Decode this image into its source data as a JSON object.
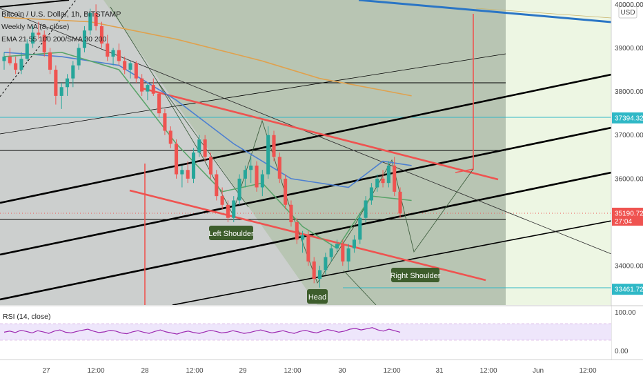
{
  "header": {
    "title": "Bitcoin / U.S. Dollar, 1h, BITSTAMP",
    "ma_label": "Weekly MA (8, close)",
    "ema_label": "EMA 21 55 100 200/SMA 30 200",
    "currency": "USD"
  },
  "colors": {
    "background": "#ffffff",
    "zone_gray": "#b9bcbb",
    "zone_green": "#8fb07a",
    "future_zone": "#edf6e3",
    "rsi_band": "#eee6fb",
    "rsi_line": "#9c27b0",
    "up_candle": "#26a69a",
    "down_candle": "#ef5350",
    "pattern_line": "#ef5350",
    "channel_line": "#000000",
    "blue_trend": "#2a75c5",
    "cyan_level": "#2fb8c6",
    "ma_orange": "#e0a14d",
    "ma_blue": "#4c7fd1",
    "ma_green": "#5aa46a",
    "label_bg": "#3d5d2c"
  },
  "annotations": {
    "left_shoulder": "Left Shoulder",
    "head": "Head",
    "right_shoulder": "Right Shoulder"
  },
  "rsi": {
    "label": "RSI (14, close)",
    "ticks": [
      "100.00",
      "0.00"
    ],
    "values": [
      52,
      55,
      51,
      57,
      54,
      50,
      56,
      53,
      49,
      55,
      58,
      52,
      50,
      54,
      57,
      60,
      55,
      51,
      53,
      57,
      55,
      50,
      48,
      53,
      56,
      52,
      49,
      54,
      58,
      53,
      50,
      47,
      52,
      55,
      51,
      49,
      53,
      57,
      54,
      50,
      52,
      56,
      53,
      49,
      51,
      55,
      58,
      54,
      50,
      53,
      56,
      52,
      49,
      54,
      57,
      53,
      50,
      55,
      59,
      56,
      52,
      55,
      60,
      62,
      58,
      61,
      64,
      58,
      55,
      60,
      56,
      52
    ]
  },
  "chart_data": {
    "type": "candlestick",
    "title": "Bitcoin / U.S. Dollar, 1h, BITSTAMP",
    "ylim": [
      33100,
      40100
    ],
    "y_ticks": [
      {
        "value": 40000,
        "label": "40000.00"
      },
      {
        "value": 39000,
        "label": "39000.00"
      },
      {
        "value": 38000,
        "label": "38000.00"
      },
      {
        "value": 37000,
        "label": "37000.00"
      },
      {
        "value": 36000,
        "label": "36000.00"
      },
      {
        "value": 34000,
        "label": "34000.00"
      }
    ],
    "price_labels": [
      {
        "value": 37394.32,
        "label": "37394.32",
        "color": "#2fb8c6"
      },
      {
        "value": 35190.72,
        "label": "35190.72",
        "color": "#ef5350"
      },
      {
        "value": 33461.72,
        "label": "33461.72",
        "color": "#2fb8c6"
      }
    ],
    "countdown": "27:04",
    "x_ticks": [
      "27",
      "12:00",
      "28",
      "12:00",
      "29",
      "12:00",
      "30",
      "12:00",
      "31",
      "12:00",
      "Jun",
      "12:00"
    ],
    "candles": [
      [
        38700,
        38900,
        38500,
        38800
      ],
      [
        38800,
        39000,
        38600,
        38650
      ],
      [
        38650,
        38800,
        38400,
        38500
      ],
      [
        38500,
        38900,
        38400,
        38750
      ],
      [
        38750,
        39200,
        38700,
        39100
      ],
      [
        39100,
        39500,
        39000,
        39350
      ],
      [
        39350,
        39600,
        39200,
        39300
      ],
      [
        39300,
        39400,
        38800,
        38900
      ],
      [
        38900,
        39000,
        38400,
        38500
      ],
      [
        38500,
        38600,
        37700,
        37900
      ],
      [
        37900,
        38200,
        37600,
        38100
      ],
      [
        38100,
        38400,
        37900,
        38300
      ],
      [
        38300,
        38700,
        38100,
        38600
      ],
      [
        38600,
        39100,
        38500,
        39000
      ],
      [
        39000,
        39500,
        38900,
        39400
      ],
      [
        39400,
        39900,
        39300,
        39800
      ],
      [
        39800,
        40000,
        39400,
        39500
      ],
      [
        39500,
        39600,
        39000,
        39100
      ],
      [
        39100,
        39300,
        38700,
        38800
      ],
      [
        38800,
        39000,
        38600,
        38950
      ],
      [
        38950,
        39100,
        38600,
        38700
      ],
      [
        38700,
        38800,
        38400,
        38500
      ],
      [
        38500,
        38700,
        38300,
        38650
      ],
      [
        38650,
        38700,
        38200,
        38300
      ],
      [
        38300,
        38400,
        37900,
        38000
      ],
      [
        38000,
        38200,
        37800,
        38150
      ],
      [
        38150,
        38300,
        37900,
        37950
      ],
      [
        37950,
        38000,
        37400,
        37500
      ],
      [
        37500,
        37600,
        37000,
        37100
      ],
      [
        37100,
        37200,
        36700,
        36800
      ],
      [
        36800,
        36900,
        36000,
        36100
      ],
      [
        36100,
        36300,
        35800,
        36200
      ],
      [
        36200,
        36400,
        35900,
        36000
      ],
      [
        36000,
        36700,
        35900,
        36600
      ],
      [
        36600,
        37000,
        36500,
        36900
      ],
      [
        36900,
        37000,
        36400,
        36500
      ],
      [
        36500,
        36600,
        36000,
        36100
      ],
      [
        36100,
        36200,
        35500,
        35600
      ],
      [
        35600,
        35800,
        35300,
        35400
      ],
      [
        35400,
        35500,
        35000,
        35100
      ],
      [
        35100,
        35600,
        35000,
        35500
      ],
      [
        35500,
        36100,
        35400,
        36000
      ],
      [
        36000,
        36300,
        35800,
        36200
      ],
      [
        36200,
        36500,
        35900,
        36300
      ],
      [
        36300,
        36400,
        35700,
        35800
      ],
      [
        35800,
        36200,
        35600,
        36100
      ],
      [
        36100,
        37200,
        36000,
        37000
      ],
      [
        37000,
        37100,
        36400,
        36500
      ],
      [
        36500,
        36600,
        35900,
        36000
      ],
      [
        36000,
        36100,
        35300,
        35400
      ],
      [
        35400,
        35500,
        34900,
        35000
      ],
      [
        35000,
        35100,
        34500,
        34600
      ],
      [
        34600,
        34800,
        34300,
        34700
      ],
      [
        34700,
        34800,
        34000,
        34100
      ],
      [
        34100,
        34200,
        33600,
        33700
      ],
      [
        33700,
        34000,
        33500,
        33900
      ],
      [
        33900,
        34300,
        33800,
        34200
      ],
      [
        34200,
        34500,
        34100,
        34400
      ],
      [
        34400,
        34600,
        34300,
        34500
      ],
      [
        34500,
        34600,
        34000,
        34100
      ],
      [
        34100,
        34500,
        33900,
        34400
      ],
      [
        34400,
        34700,
        34300,
        34600
      ],
      [
        34600,
        35200,
        34500,
        35100
      ],
      [
        35100,
        35600,
        35000,
        35500
      ],
      [
        35500,
        35900,
        35400,
        35800
      ],
      [
        35800,
        36100,
        35700,
        36000
      ],
      [
        36000,
        36200,
        35800,
        35900
      ],
      [
        35900,
        36400,
        35800,
        36300
      ],
      [
        36300,
        36500,
        35600,
        35700
      ],
      [
        35700,
        35800,
        35100,
        35200
      ]
    ],
    "moving_averages": [
      {
        "color": "#e0a14d",
        "points": [
          [
            0,
            39700
          ],
          [
            15,
            39600
          ],
          [
            30,
            39200
          ],
          [
            45,
            38700
          ],
          [
            55,
            38300
          ],
          [
            65,
            38050
          ],
          [
            71,
            37900
          ]
        ]
      },
      {
        "color": "#4c7fd1",
        "points": [
          [
            0,
            38900
          ],
          [
            10,
            38800
          ],
          [
            20,
            38600
          ],
          [
            30,
            37800
          ],
          [
            40,
            36800
          ],
          [
            50,
            36000
          ],
          [
            60,
            35800
          ],
          [
            66,
            36400
          ],
          [
            71,
            36300
          ]
        ]
      },
      {
        "color": "#5aa46a",
        "points": [
          [
            0,
            38800
          ],
          [
            10,
            38900
          ],
          [
            20,
            38500
          ],
          [
            30,
            36800
          ],
          [
            38,
            35700
          ],
          [
            45,
            35900
          ],
          [
            52,
            34900
          ],
          [
            58,
            34400
          ],
          [
            64,
            35600
          ],
          [
            71,
            35500
          ]
        ]
      }
    ]
  }
}
